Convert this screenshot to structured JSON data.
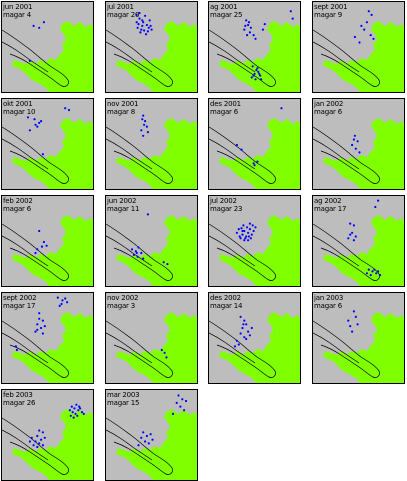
{
  "colors": {
    "land": "#80ff00",
    "sea": "#bdbdbd",
    "dot": "#0000ff",
    "outline": "#000000"
  },
  "panels": [
    {
      "date": "jun 2001",
      "count": "magar 4",
      "dots": [
        [
          0.34,
          0.26
        ],
        [
          0.4,
          0.28
        ],
        [
          0.3,
          0.64
        ],
        [
          0.45,
          0.22
        ]
      ]
    },
    {
      "date": "jul 2001",
      "count": "magar 20",
      "dots": [
        [
          0.33,
          0.14
        ],
        [
          0.36,
          0.18
        ],
        [
          0.4,
          0.22
        ],
        [
          0.44,
          0.25
        ],
        [
          0.38,
          0.3
        ],
        [
          0.45,
          0.32
        ],
        [
          0.35,
          0.24
        ],
        [
          0.42,
          0.15
        ],
        [
          0.46,
          0.28
        ],
        [
          0.37,
          0.33
        ],
        [
          0.48,
          0.26
        ],
        [
          0.39,
          0.2
        ],
        [
          0.41,
          0.31
        ],
        [
          0.34,
          0.28
        ],
        [
          0.47,
          0.2
        ],
        [
          0.36,
          0.12
        ],
        [
          0.43,
          0.35
        ],
        [
          0.39,
          0.26
        ],
        [
          0.49,
          0.3
        ],
        [
          0.33,
          0.22
        ]
      ]
    },
    {
      "date": "ag 2001",
      "count": "magar 25",
      "dots": [
        [
          0.4,
          0.2
        ],
        [
          0.42,
          0.25
        ],
        [
          0.45,
          0.28
        ],
        [
          0.38,
          0.3
        ],
        [
          0.44,
          0.33
        ],
        [
          0.48,
          0.36
        ],
        [
          0.5,
          0.4
        ],
        [
          0.47,
          0.7
        ],
        [
          0.52,
          0.72
        ],
        [
          0.49,
          0.78
        ],
        [
          0.55,
          0.8
        ],
        [
          0.5,
          0.84
        ],
        [
          0.53,
          0.76
        ],
        [
          0.46,
          0.82
        ],
        [
          0.88,
          0.1
        ],
        [
          0.9,
          0.18
        ],
        [
          0.6,
          0.24
        ],
        [
          0.58,
          0.3
        ],
        [
          0.41,
          0.36
        ],
        [
          0.43,
          0.22
        ],
        [
          0.51,
          0.74
        ],
        [
          0.56,
          0.84
        ],
        [
          0.48,
          0.8
        ],
        [
          0.39,
          0.26
        ],
        [
          0.54,
          0.78
        ]
      ]
    },
    {
      "date": "sept 2001",
      "count": "magar 9",
      "dots": [
        [
          0.6,
          0.1
        ],
        [
          0.63,
          0.14
        ],
        [
          0.58,
          0.22
        ],
        [
          0.55,
          0.3
        ],
        [
          0.45,
          0.38
        ],
        [
          0.5,
          0.44
        ],
        [
          0.62,
          0.36
        ],
        [
          0.65,
          0.4
        ],
        [
          0.52,
          0.26
        ]
      ]
    },
    {
      "date": "okt 2001",
      "count": "magar 10",
      "dots": [
        [
          0.28,
          0.2
        ],
        [
          0.35,
          0.22
        ],
        [
          0.4,
          0.26
        ],
        [
          0.38,
          0.3
        ],
        [
          0.68,
          0.1
        ],
        [
          0.72,
          0.12
        ],
        [
          0.3,
          0.34
        ],
        [
          0.44,
          0.6
        ],
        [
          0.36,
          0.28
        ],
        [
          0.42,
          0.24
        ]
      ]
    },
    {
      "date": "nov 2001",
      "count": "magar 8",
      "dots": [
        [
          0.4,
          0.18
        ],
        [
          0.42,
          0.24
        ],
        [
          0.44,
          0.3
        ],
        [
          0.38,
          0.34
        ],
        [
          0.4,
          0.4
        ],
        [
          0.45,
          0.36
        ],
        [
          0.41,
          0.28
        ],
        [
          0.39,
          0.22
        ]
      ]
    },
    {
      "date": "des 2001",
      "count": "magar 6",
      "dots": [
        [
          0.78,
          0.1
        ],
        [
          0.3,
          0.5
        ],
        [
          0.35,
          0.55
        ],
        [
          0.48,
          0.7
        ],
        [
          0.52,
          0.68
        ],
        [
          0.49,
          0.72
        ]
      ]
    },
    {
      "date": "jan 2002",
      "count": "magar 6",
      "dots": [
        [
          0.45,
          0.4
        ],
        [
          0.48,
          0.46
        ],
        [
          0.42,
          0.5
        ],
        [
          0.5,
          0.58
        ],
        [
          0.46,
          0.54
        ],
        [
          0.44,
          0.44
        ]
      ]
    },
    {
      "date": "feb 2002",
      "count": "magar 6",
      "dots": [
        [
          0.4,
          0.38
        ],
        [
          0.45,
          0.5
        ],
        [
          0.43,
          0.55
        ],
        [
          0.38,
          0.58
        ],
        [
          0.36,
          0.62
        ],
        [
          0.48,
          0.54
        ]
      ]
    },
    {
      "date": "jun 2002",
      "count": "magar 11",
      "dots": [
        [
          0.45,
          0.2
        ],
        [
          0.28,
          0.58
        ],
        [
          0.32,
          0.6
        ],
        [
          0.35,
          0.56
        ],
        [
          0.3,
          0.64
        ],
        [
          0.34,
          0.66
        ],
        [
          0.38,
          0.62
        ],
        [
          0.4,
          0.68
        ],
        [
          0.62,
          0.72
        ],
        [
          0.66,
          0.74
        ],
        [
          0.33,
          0.62
        ]
      ]
    },
    {
      "date": "jul 2002",
      "count": "magar 23",
      "dots": [
        [
          0.35,
          0.35
        ],
        [
          0.38,
          0.38
        ],
        [
          0.42,
          0.4
        ],
        [
          0.44,
          0.36
        ],
        [
          0.4,
          0.44
        ],
        [
          0.46,
          0.42
        ],
        [
          0.36,
          0.42
        ],
        [
          0.3,
          0.4
        ],
        [
          0.48,
          0.38
        ],
        [
          0.34,
          0.46
        ],
        [
          0.5,
          0.34
        ],
        [
          0.41,
          0.34
        ],
        [
          0.39,
          0.46
        ],
        [
          0.45,
          0.46
        ],
        [
          0.32,
          0.36
        ],
        [
          0.47,
          0.32
        ],
        [
          0.37,
          0.32
        ],
        [
          0.43,
          0.44
        ],
        [
          0.38,
          0.48
        ],
        [
          0.44,
          0.3
        ],
        [
          0.36,
          0.38
        ],
        [
          0.42,
          0.48
        ],
        [
          0.33,
          0.44
        ]
      ]
    },
    {
      "date": "ag 2002",
      "count": "magar 17",
      "dots": [
        [
          0.7,
          0.05
        ],
        [
          0.67,
          0.12
        ],
        [
          0.4,
          0.3
        ],
        [
          0.44,
          0.32
        ],
        [
          0.42,
          0.4
        ],
        [
          0.46,
          0.44
        ],
        [
          0.38,
          0.46
        ],
        [
          0.6,
          0.8
        ],
        [
          0.64,
          0.82
        ],
        [
          0.68,
          0.84
        ],
        [
          0.72,
          0.86
        ],
        [
          0.58,
          0.84
        ],
        [
          0.62,
          0.86
        ],
        [
          0.66,
          0.8
        ],
        [
          0.44,
          0.48
        ],
        [
          0.4,
          0.42
        ],
        [
          0.7,
          0.82
        ]
      ]
    },
    {
      "date": "sept 2002",
      "count": "magar 17",
      "dots": [
        [
          0.4,
          0.22
        ],
        [
          0.44,
          0.3
        ],
        [
          0.38,
          0.34
        ],
        [
          0.42,
          0.38
        ],
        [
          0.6,
          0.05
        ],
        [
          0.65,
          0.08
        ],
        [
          0.7,
          0.1
        ],
        [
          0.62,
          0.14
        ],
        [
          0.15,
          0.58
        ],
        [
          0.16,
          0.62
        ],
        [
          0.36,
          0.42
        ],
        [
          0.44,
          0.44
        ],
        [
          0.4,
          0.28
        ],
        [
          0.46,
          0.36
        ],
        [
          0.38,
          0.4
        ],
        [
          0.68,
          0.06
        ],
        [
          0.64,
          0.12
        ]
      ]
    },
    {
      "date": "nov 2002",
      "count": "magar 3",
      "dots": [
        [
          0.6,
          0.62
        ],
        [
          0.63,
          0.65
        ],
        [
          0.65,
          0.7
        ]
      ]
    },
    {
      "date": "des 2002",
      "count": "magar 14",
      "dots": [
        [
          0.34,
          0.26
        ],
        [
          0.38,
          0.3
        ],
        [
          0.4,
          0.34
        ],
        [
          0.36,
          0.38
        ],
        [
          0.42,
          0.42
        ],
        [
          0.44,
          0.46
        ],
        [
          0.38,
          0.48
        ],
        [
          0.3,
          0.52
        ],
        [
          0.28,
          0.58
        ],
        [
          0.32,
          0.56
        ],
        [
          0.4,
          0.5
        ],
        [
          0.46,
          0.38
        ],
        [
          0.34,
          0.44
        ],
        [
          0.37,
          0.34
        ]
      ]
    },
    {
      "date": "jan 2003",
      "count": "magar 6",
      "dots": [
        [
          0.44,
          0.2
        ],
        [
          0.46,
          0.26
        ],
        [
          0.38,
          0.3
        ],
        [
          0.4,
          0.36
        ],
        [
          0.42,
          0.42
        ],
        [
          0.48,
          0.34
        ]
      ]
    },
    {
      "date": "feb 2003",
      "count": "magar 26",
      "dots": [
        [
          0.75,
          0.18
        ],
        [
          0.78,
          0.2
        ],
        [
          0.82,
          0.22
        ],
        [
          0.8,
          0.16
        ],
        [
          0.76,
          0.24
        ],
        [
          0.84,
          0.2
        ],
        [
          0.79,
          0.26
        ],
        [
          0.73,
          0.22
        ],
        [
          0.81,
          0.28
        ],
        [
          0.86,
          0.24
        ],
        [
          0.4,
          0.44
        ],
        [
          0.44,
          0.46
        ],
        [
          0.38,
          0.5
        ],
        [
          0.36,
          0.56
        ],
        [
          0.42,
          0.54
        ],
        [
          0.46,
          0.52
        ],
        [
          0.3,
          0.56
        ],
        [
          0.34,
          0.6
        ],
        [
          0.77,
          0.3
        ],
        [
          0.83,
          0.18
        ],
        [
          0.4,
          0.58
        ],
        [
          0.44,
          0.6
        ],
        [
          0.74,
          0.28
        ],
        [
          0.88,
          0.26
        ],
        [
          0.38,
          0.62
        ],
        [
          0.32,
          0.52
        ]
      ]
    },
    {
      "date": "mar 2003",
      "count": "magar 15",
      "dots": [
        [
          0.78,
          0.06
        ],
        [
          0.82,
          0.1
        ],
        [
          0.76,
          0.14
        ],
        [
          0.8,
          0.18
        ],
        [
          0.84,
          0.22
        ],
        [
          0.72,
          0.26
        ],
        [
          0.4,
          0.46
        ],
        [
          0.44,
          0.5
        ],
        [
          0.42,
          0.56
        ],
        [
          0.38,
          0.52
        ],
        [
          0.48,
          0.48
        ],
        [
          0.46,
          0.58
        ],
        [
          0.35,
          0.6
        ],
        [
          0.86,
          0.12
        ],
        [
          0.5,
          0.54
        ]
      ]
    }
  ]
}
